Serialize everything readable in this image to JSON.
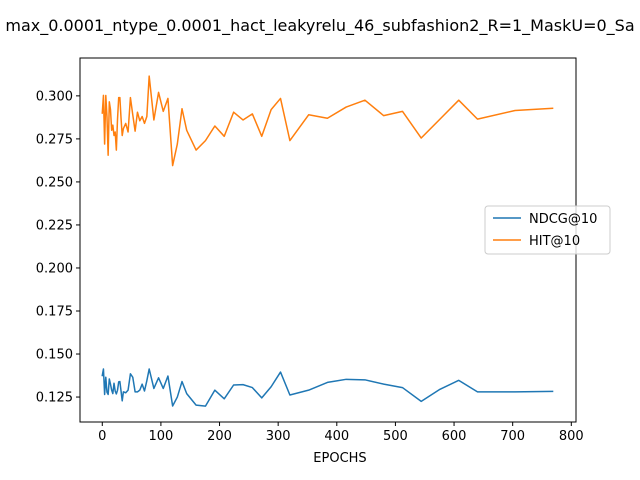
{
  "chart_data": {
    "type": "line",
    "title": "max_0.0001_ntype_0.0001_hact_leakyrelu_46_subfashion2_R=1_MaskU=0_Sa",
    "xlabel": "EPOCHS",
    "ylabel": "",
    "xlim": [
      -38,
      808
    ],
    "ylim": [
      0.1105,
      0.322
    ],
    "xticks": [
      0,
      100,
      200,
      300,
      400,
      500,
      600,
      700,
      800
    ],
    "xtick_labels": [
      "0",
      "100",
      "200",
      "300",
      "400",
      "500",
      "600",
      "700",
      "800"
    ],
    "yticks": [
      0.125,
      0.15,
      0.175,
      0.2,
      0.225,
      0.25,
      0.275,
      0.3
    ],
    "ytick_labels": [
      "0.125",
      "0.150",
      "0.175",
      "0.200",
      "0.225",
      "0.250",
      "0.275",
      "0.300"
    ],
    "grid": false,
    "legend_position": "center-right",
    "series": [
      {
        "name": "NDCG@10",
        "color": "#1f77b4",
        "x": [
          0,
          2,
          4,
          6,
          8,
          10,
          12,
          14,
          16,
          18,
          20,
          22,
          24,
          26,
          28,
          30,
          32,
          34,
          36,
          40,
          44,
          48,
          52,
          56,
          60,
          64,
          68,
          72,
          76,
          80,
          88,
          96,
          104,
          112,
          120,
          128,
          136,
          144,
          160,
          176,
          192,
          208,
          224,
          240,
          256,
          272,
          288,
          304,
          320,
          352,
          384,
          416,
          448,
          480,
          512,
          544,
          576,
          608,
          640,
          704,
          768
        ],
        "y": [
          0.1375,
          0.1413,
          0.1265,
          0.1365,
          0.1278,
          0.1265,
          0.1355,
          0.1325,
          0.129,
          0.127,
          0.133,
          0.1285,
          0.1268,
          0.129,
          0.1338,
          0.134,
          0.1285,
          0.1228,
          0.128,
          0.1275,
          0.129,
          0.1385,
          0.1365,
          0.128,
          0.128,
          0.129,
          0.1325,
          0.1285,
          0.1345,
          0.1413,
          0.13,
          0.1362,
          0.13,
          0.1372,
          0.1198,
          0.125,
          0.134,
          0.127,
          0.1203,
          0.1197,
          0.129,
          0.124,
          0.132,
          0.1322,
          0.1305,
          0.1245,
          0.131,
          0.1395,
          0.1262,
          0.129,
          0.1335,
          0.1353,
          0.135,
          0.1325,
          0.1305,
          0.1225,
          0.1295,
          0.1347,
          0.128,
          0.128,
          0.1283
        ]
      },
      {
        "name": "HIT@10",
        "color": "#ff7f0e",
        "x": [
          0,
          2,
          4,
          6,
          8,
          10,
          12,
          14,
          16,
          18,
          20,
          22,
          24,
          26,
          28,
          30,
          32,
          34,
          36,
          40,
          44,
          48,
          52,
          56,
          60,
          64,
          68,
          72,
          76,
          80,
          88,
          96,
          104,
          112,
          120,
          128,
          136,
          144,
          160,
          176,
          192,
          208,
          224,
          240,
          256,
          272,
          288,
          304,
          320,
          352,
          384,
          416,
          448,
          480,
          512,
          544,
          576,
          608,
          640,
          704,
          768
        ],
        "y": [
          0.29,
          0.3003,
          0.272,
          0.3002,
          0.288,
          0.2655,
          0.2965,
          0.292,
          0.28,
          0.283,
          0.277,
          0.279,
          0.2685,
          0.2865,
          0.299,
          0.299,
          0.287,
          0.277,
          0.281,
          0.284,
          0.279,
          0.299,
          0.289,
          0.2795,
          0.2905,
          0.2855,
          0.288,
          0.284,
          0.288,
          0.3115,
          0.286,
          0.302,
          0.291,
          0.2985,
          0.2595,
          0.272,
          0.2925,
          0.28,
          0.2685,
          0.274,
          0.2825,
          0.2765,
          0.2905,
          0.286,
          0.2895,
          0.2765,
          0.292,
          0.2985,
          0.274,
          0.289,
          0.287,
          0.2935,
          0.2975,
          0.2885,
          0.291,
          0.2755,
          0.2865,
          0.2975,
          0.2865,
          0.2915,
          0.2928
        ]
      }
    ]
  }
}
